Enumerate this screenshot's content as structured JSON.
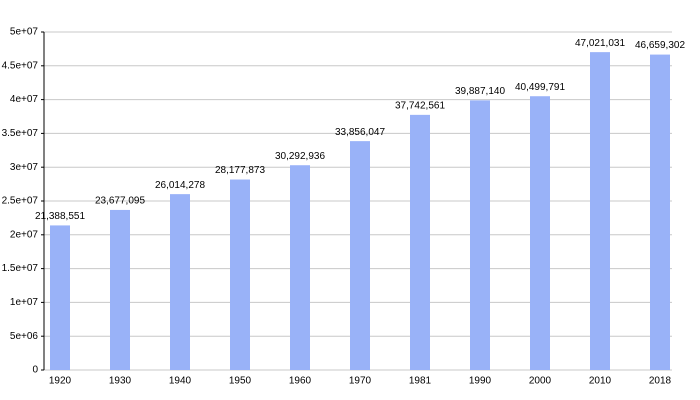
{
  "chart_data": {
    "type": "bar",
    "categories": [
      "1920",
      "1930",
      "1940",
      "1950",
      "1960",
      "1970",
      "1981",
      "1990",
      "2000",
      "2010",
      "2018"
    ],
    "values": [
      21388551,
      23677095,
      26014278,
      28177873,
      30292936,
      33856047,
      37742561,
      39887140,
      40499791,
      47021031,
      46659302
    ],
    "value_labels": [
      "21,388,551",
      "23,677,095",
      "26,014,278",
      "28,177,873",
      "30,292,936",
      "33,856,047",
      "37,742,561",
      "39,887,140",
      "40,499,791",
      "47,021,031",
      "46,659,302"
    ],
    "color": "#99b2f8",
    "ylim": [
      0,
      50000000
    ],
    "yticks": [
      0,
      {
        "value": 5000000,
        "label": "5e+06"
      },
      {
        "value": 10000000,
        "label": "1e+07"
      },
      {
        "value": 15000000,
        "label": "1.5e+07"
      },
      {
        "value": 20000000,
        "label": "2e+07"
      },
      {
        "value": 25000000,
        "label": "2.5e+07"
      },
      {
        "value": 30000000,
        "label": "3e+07"
      },
      {
        "value": 35000000,
        "label": "3.5e+07"
      },
      {
        "value": 40000000,
        "label": "4e+07"
      },
      {
        "value": 45000000,
        "label": "4.5e+07"
      },
      {
        "value": 50000000,
        "label": "5e+07"
      }
    ],
    "grid": true
  }
}
